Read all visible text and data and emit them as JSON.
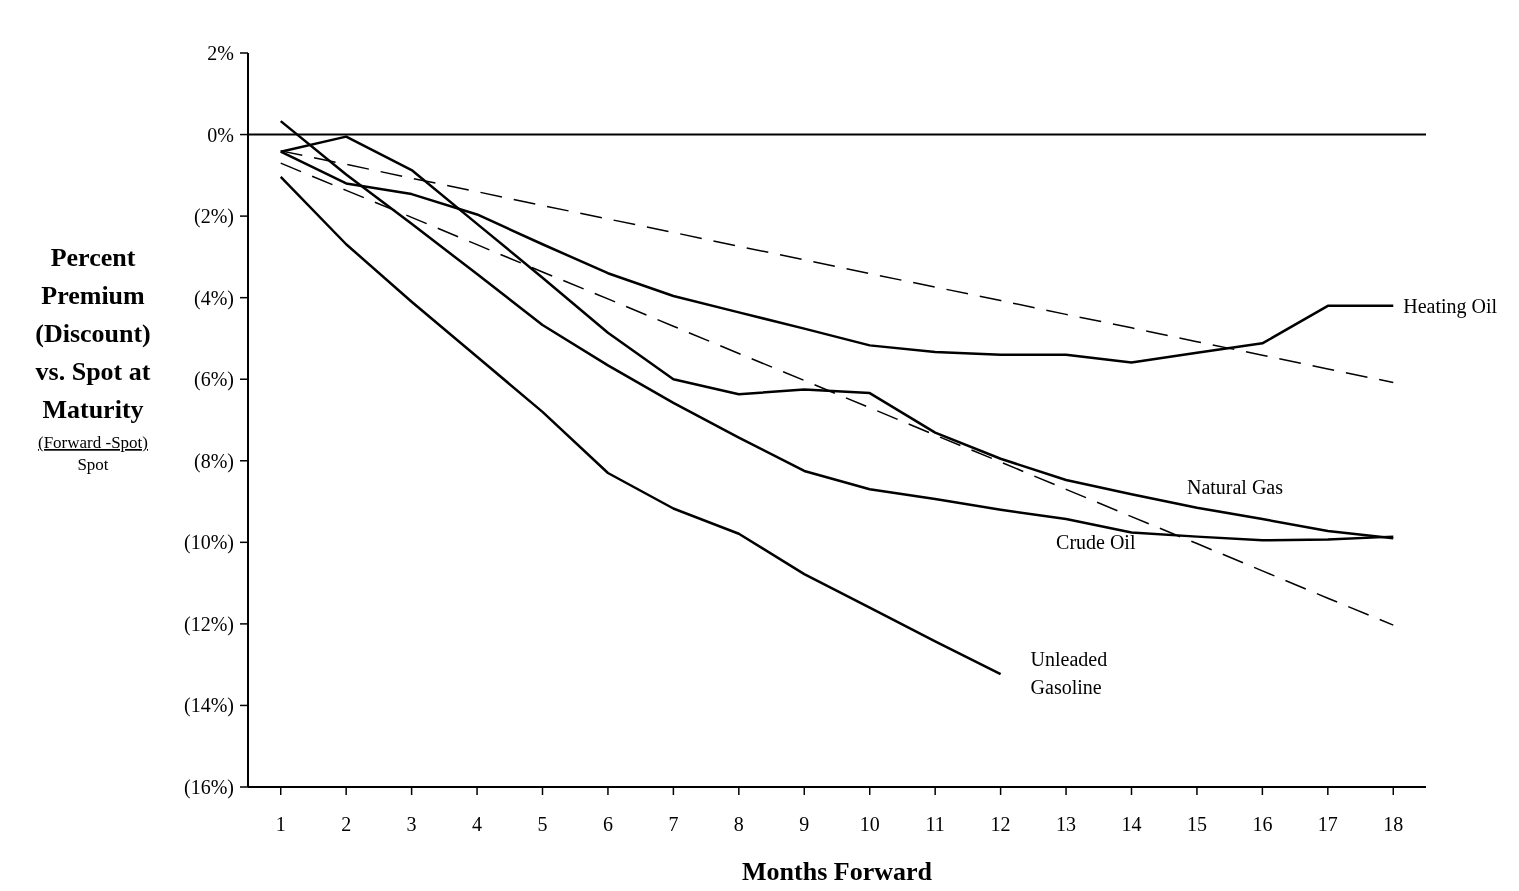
{
  "chart_data": {
    "type": "line",
    "xlabel": "Months Forward",
    "ylabel": "Percent Premium (Discount) vs. Spot at Maturity",
    "annotations": [
      "(Forward -Spot)",
      "Spot"
    ],
    "x": [
      1,
      2,
      3,
      4,
      5,
      6,
      7,
      8,
      9,
      10,
      11,
      12,
      13,
      14,
      15,
      16,
      17,
      18
    ],
    "xlim": [
      0.5,
      18.5
    ],
    "xticks": [
      1,
      2,
      3,
      4,
      5,
      6,
      7,
      8,
      9,
      10,
      11,
      12,
      13,
      14,
      15,
      16,
      17,
      18
    ],
    "ylim": [
      -16,
      2
    ],
    "yticks": [
      {
        "value": 2,
        "label": "2%"
      },
      {
        "value": 0,
        "label": "0%"
      },
      {
        "value": -2,
        "label": "(2%)"
      },
      {
        "value": -4,
        "label": "(4%)"
      },
      {
        "value": -6,
        "label": "(6%)"
      },
      {
        "value": -8,
        "label": "(8%)"
      },
      {
        "value": -10,
        "label": "(10%)"
      },
      {
        "value": -12,
        "label": "(12%)"
      },
      {
        "value": -14,
        "label": "(14%)"
      },
      {
        "value": -16,
        "label": "(16%)"
      }
    ],
    "grid": false,
    "marker": "none",
    "line_style": "solid",
    "ref_lines": [
      {
        "axis": "y",
        "value": 0,
        "color": "#000000"
      }
    ],
    "series": [
      {
        "name": "Heating Oil",
        "color": "#000000",
        "values": [
          -0.42,
          -1.2,
          -1.46,
          -1.96,
          -2.69,
          -3.4,
          -3.96,
          -4.36,
          -4.76,
          -5.17,
          -5.33,
          -5.4,
          -5.4,
          -5.59,
          -5.35,
          -5.12,
          -4.2,
          -4.2
        ]
      },
      {
        "name": "Natural Gas",
        "color": "#000000",
        "values": [
          -0.42,
          -0.05,
          -0.87,
          -2.19,
          -3.51,
          -4.86,
          -6.0,
          -6.37,
          -6.25,
          -6.34,
          -7.31,
          -7.95,
          -8.47,
          -8.82,
          -9.15,
          -9.43,
          -9.72,
          -9.9
        ]
      },
      {
        "name": "Crude Oil",
        "color": "#000000",
        "values": [
          0.33,
          -0.98,
          -2.19,
          -3.42,
          -4.67,
          -5.66,
          -6.58,
          -7.43,
          -8.25,
          -8.7,
          -8.94,
          -9.2,
          -9.43,
          -9.76,
          -9.86,
          -9.95,
          -9.93,
          -9.86
        ]
      },
      {
        "name": "Unleaded Gasoline",
        "color": "#000000",
        "values": [
          -1.04,
          -2.69,
          -4.1,
          -5.45,
          -6.8,
          -8.3,
          -9.17,
          -9.79,
          -10.78,
          -11.6,
          -12.43,
          -13.23,
          null,
          null,
          null,
          null,
          null,
          null
        ]
      },
      {
        "color": "#000000",
        "line_style": "dashed",
        "values": [
          -0.4,
          -0.73,
          -1.07,
          -1.4,
          -1.74,
          -2.07,
          -2.4,
          -2.74,
          -3.07,
          -3.41,
          -3.74,
          -4.07,
          -4.41,
          -4.74,
          -5.08,
          -5.41,
          -5.75,
          -6.08
        ]
      },
      {
        "color": "#000000",
        "line_style": "dashed",
        "values": [
          -0.7,
          -1.37,
          -2.03,
          -2.7,
          -3.37,
          -4.03,
          -4.7,
          -5.37,
          -6.03,
          -6.7,
          -7.37,
          -8.03,
          -8.7,
          -9.37,
          -10.03,
          -10.7,
          -11.37,
          -12.03
        ]
      }
    ]
  }
}
